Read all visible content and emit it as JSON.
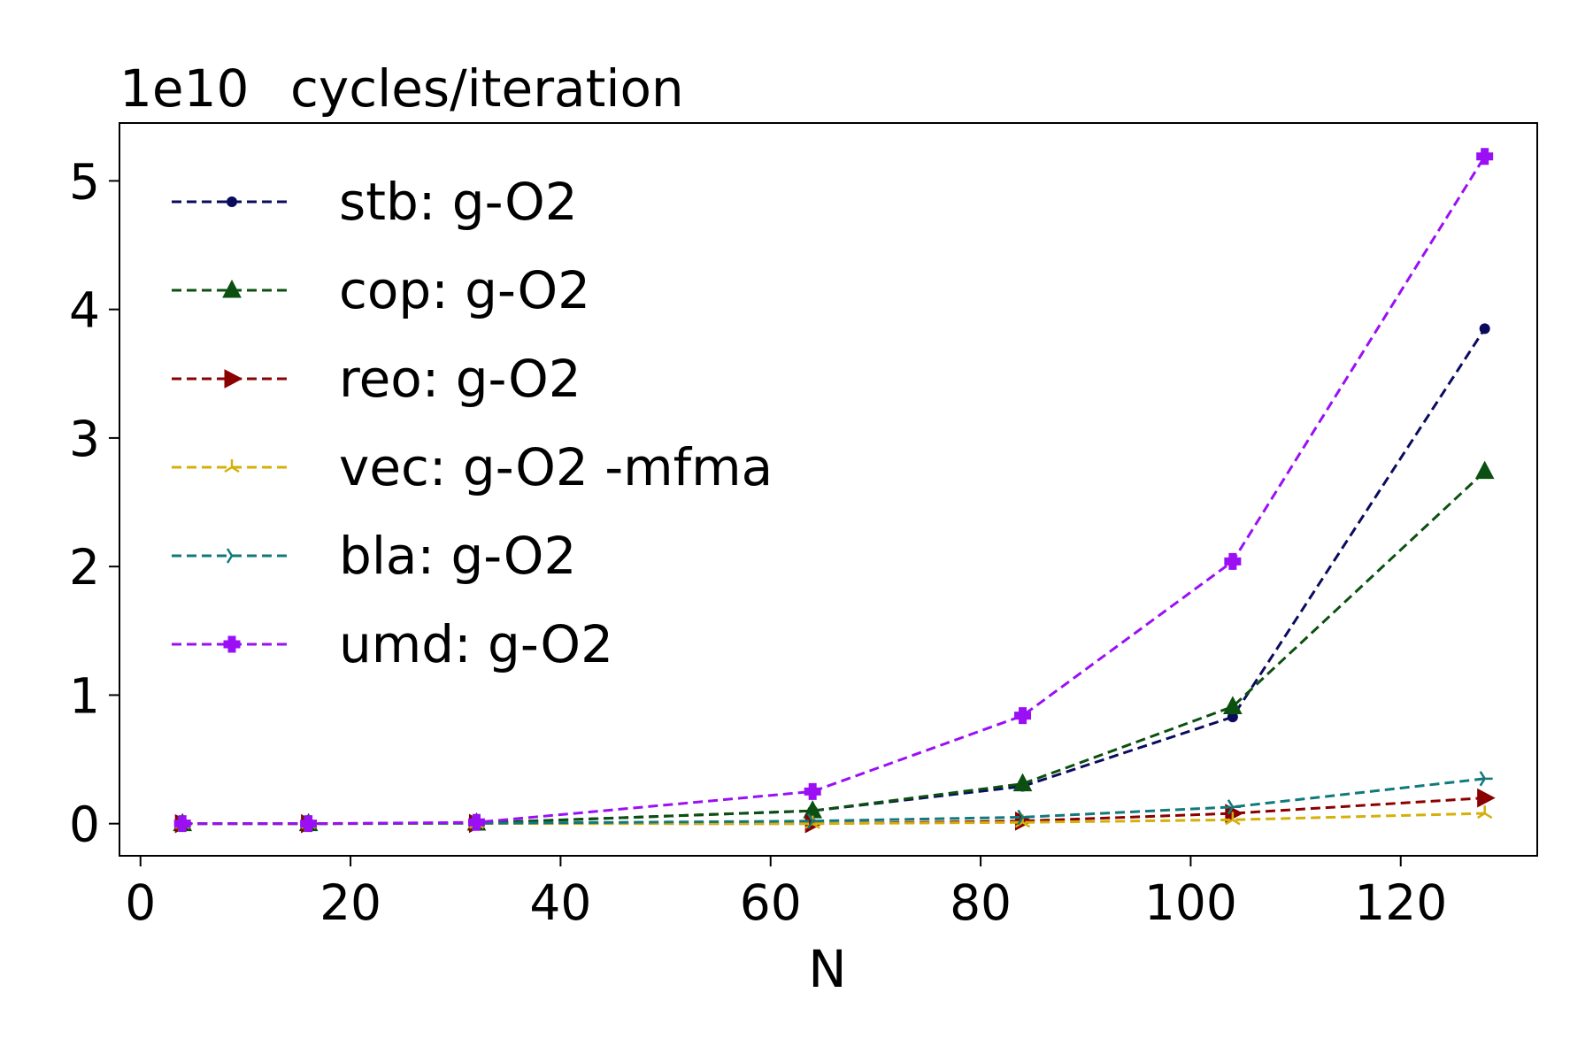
{
  "chart_data": {
    "type": "line",
    "title": "cycles/iteration",
    "y_scale_label": "1e10",
    "xlabel": "N",
    "ylabel": "",
    "xlim": [
      -2,
      133
    ],
    "ylim": [
      -0.25,
      5.45
    ],
    "x_ticks": [
      0,
      20,
      40,
      60,
      80,
      100,
      120
    ],
    "y_ticks": [
      0,
      1,
      2,
      3,
      4,
      5
    ],
    "x_tick_labels": [
      "0",
      "20",
      "40",
      "60",
      "80",
      "100",
      "120"
    ],
    "y_tick_labels": [
      "0",
      "1",
      "2",
      "3",
      "4",
      "5"
    ],
    "grid": false,
    "legend_position": "top-left",
    "x": [
      4,
      16,
      32,
      64,
      84,
      104,
      128
    ],
    "series": [
      {
        "name": "stb:  g-O2",
        "color": "#0b0b5e",
        "marker": "circle",
        "values": [
          0.0,
          0.0,
          0.005,
          0.1,
          0.29,
          0.83,
          3.85
        ]
      },
      {
        "name": "cop:  g-O2",
        "color": "#0b5010",
        "marker": "triangle-up",
        "values": [
          0.0,
          0.0,
          0.005,
          0.1,
          0.31,
          0.91,
          2.74
        ]
      },
      {
        "name": "reo:  g-O2",
        "color": "#8b0000",
        "marker": "triangle-right",
        "values": [
          0.0,
          0.0,
          0.002,
          0.0,
          0.02,
          0.08,
          0.2
        ]
      },
      {
        "name": "vec:  g-O2 -mfma",
        "color": "#d4b00a",
        "marker": "tri-up",
        "values": [
          0.0,
          0.0,
          0.001,
          0.0,
          0.01,
          0.03,
          0.08
        ]
      },
      {
        "name": "bla:  g-O2",
        "color": "#11797c",
        "marker": "tri-right",
        "values": [
          0.0,
          0.0,
          0.003,
          0.02,
          0.05,
          0.13,
          0.35
        ]
      },
      {
        "name": "umd:  g-O2",
        "color": "#9b0ff5",
        "marker": "plus-filled",
        "values": [
          0.0,
          0.0,
          0.01,
          0.25,
          0.84,
          2.04,
          5.19
        ]
      }
    ]
  }
}
